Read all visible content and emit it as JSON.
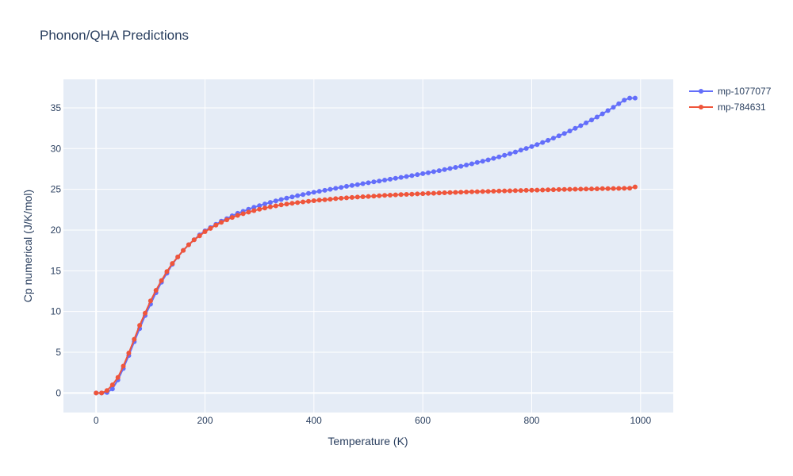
{
  "chart_data": {
    "type": "line",
    "title": "Phonon/QHA Predictions",
    "xlabel": "Temperature (K)",
    "ylabel": "Cp numerical (J/K/mol)",
    "xlim": [
      -60,
      1060
    ],
    "ylim": [
      -2.4,
      38.5
    ],
    "xticks": [
      0,
      200,
      400,
      600,
      800,
      1000
    ],
    "yticks": [
      0,
      5,
      10,
      15,
      20,
      25,
      30,
      35
    ],
    "grid": true,
    "legend_placement": "top-right, outside plot",
    "colors": {
      "plot_bg": "#e5ecf6",
      "grid": "#ffffff",
      "mp-1077077": "#636efa",
      "mp-784631": "#ef553b"
    },
    "x": [
      0,
      10,
      20,
      30,
      40,
      50,
      60,
      70,
      80,
      90,
      100,
      110,
      120,
      130,
      140,
      150,
      160,
      170,
      180,
      190,
      200,
      210,
      220,
      230,
      240,
      250,
      260,
      270,
      280,
      290,
      300,
      310,
      320,
      330,
      340,
      350,
      360,
      370,
      380,
      390,
      400,
      410,
      420,
      430,
      440,
      450,
      460,
      470,
      480,
      490,
      500,
      510,
      520,
      530,
      540,
      550,
      560,
      570,
      580,
      590,
      600,
      610,
      620,
      630,
      640,
      650,
      660,
      670,
      680,
      690,
      700,
      710,
      720,
      730,
      740,
      750,
      760,
      770,
      780,
      790,
      800,
      810,
      820,
      830,
      840,
      850,
      860,
      870,
      880,
      890,
      900,
      910,
      920,
      930,
      940,
      950,
      960,
      970,
      980,
      990
    ],
    "series": [
      {
        "name": "mp-1077077",
        "values": [
          0,
          0,
          0.05,
          0.5,
          1.6,
          3.0,
          4.6,
          6.3,
          7.9,
          9.5,
          10.9,
          12.3,
          13.6,
          14.7,
          15.8,
          16.7,
          17.5,
          18.2,
          18.8,
          19.4,
          19.9,
          20.3,
          20.7,
          21.1,
          21.4,
          21.75,
          22.05,
          22.3,
          22.55,
          22.8,
          23.0,
          23.2,
          23.4,
          23.58,
          23.75,
          23.92,
          24.07,
          24.22,
          24.36,
          24.5,
          24.63,
          24.76,
          24.88,
          25.0,
          25.12,
          25.24,
          25.36,
          25.47,
          25.58,
          25.69,
          25.8,
          25.91,
          26.02,
          26.13,
          26.24,
          26.35,
          26.46,
          26.57,
          26.68,
          26.8,
          26.92,
          27.04,
          27.16,
          27.29,
          27.42,
          27.55,
          27.69,
          27.83,
          27.98,
          28.13,
          28.29,
          28.45,
          28.62,
          28.8,
          28.98,
          29.17,
          29.37,
          29.58,
          29.8,
          30.02,
          30.25,
          30.5,
          30.75,
          31.01,
          31.28,
          31.57,
          31.86,
          32.16,
          32.48,
          32.81,
          33.15,
          33.5,
          33.87,
          34.26,
          34.66,
          35.07,
          35.5,
          35.95,
          36.2,
          36.2
        ]
      },
      {
        "name": "mp-784631",
        "values": [
          0,
          0,
          0.3,
          1.0,
          1.9,
          3.3,
          4.9,
          6.6,
          8.3,
          9.8,
          11.3,
          12.6,
          13.8,
          14.9,
          15.9,
          16.7,
          17.5,
          18.2,
          18.8,
          19.3,
          19.8,
          20.2,
          20.6,
          20.95,
          21.25,
          21.55,
          21.8,
          22.0,
          22.2,
          22.38,
          22.55,
          22.7,
          22.84,
          22.97,
          23.08,
          23.18,
          23.28,
          23.37,
          23.45,
          23.53,
          23.6,
          23.67,
          23.73,
          23.79,
          23.85,
          23.9,
          23.95,
          24.0,
          24.05,
          24.09,
          24.13,
          24.17,
          24.21,
          24.25,
          24.28,
          24.32,
          24.35,
          24.38,
          24.41,
          24.44,
          24.47,
          24.5,
          24.52,
          24.55,
          24.57,
          24.6,
          24.62,
          24.64,
          24.67,
          24.69,
          24.71,
          24.73,
          24.75,
          24.77,
          24.79,
          24.81,
          24.82,
          24.84,
          24.86,
          24.88,
          24.89,
          24.91,
          24.92,
          24.94,
          24.95,
          24.97,
          24.98,
          25.0,
          25.01,
          25.02,
          25.04,
          25.05,
          25.06,
          25.08,
          25.09,
          25.1,
          25.11,
          25.12,
          25.13,
          25.3
        ]
      }
    ]
  }
}
